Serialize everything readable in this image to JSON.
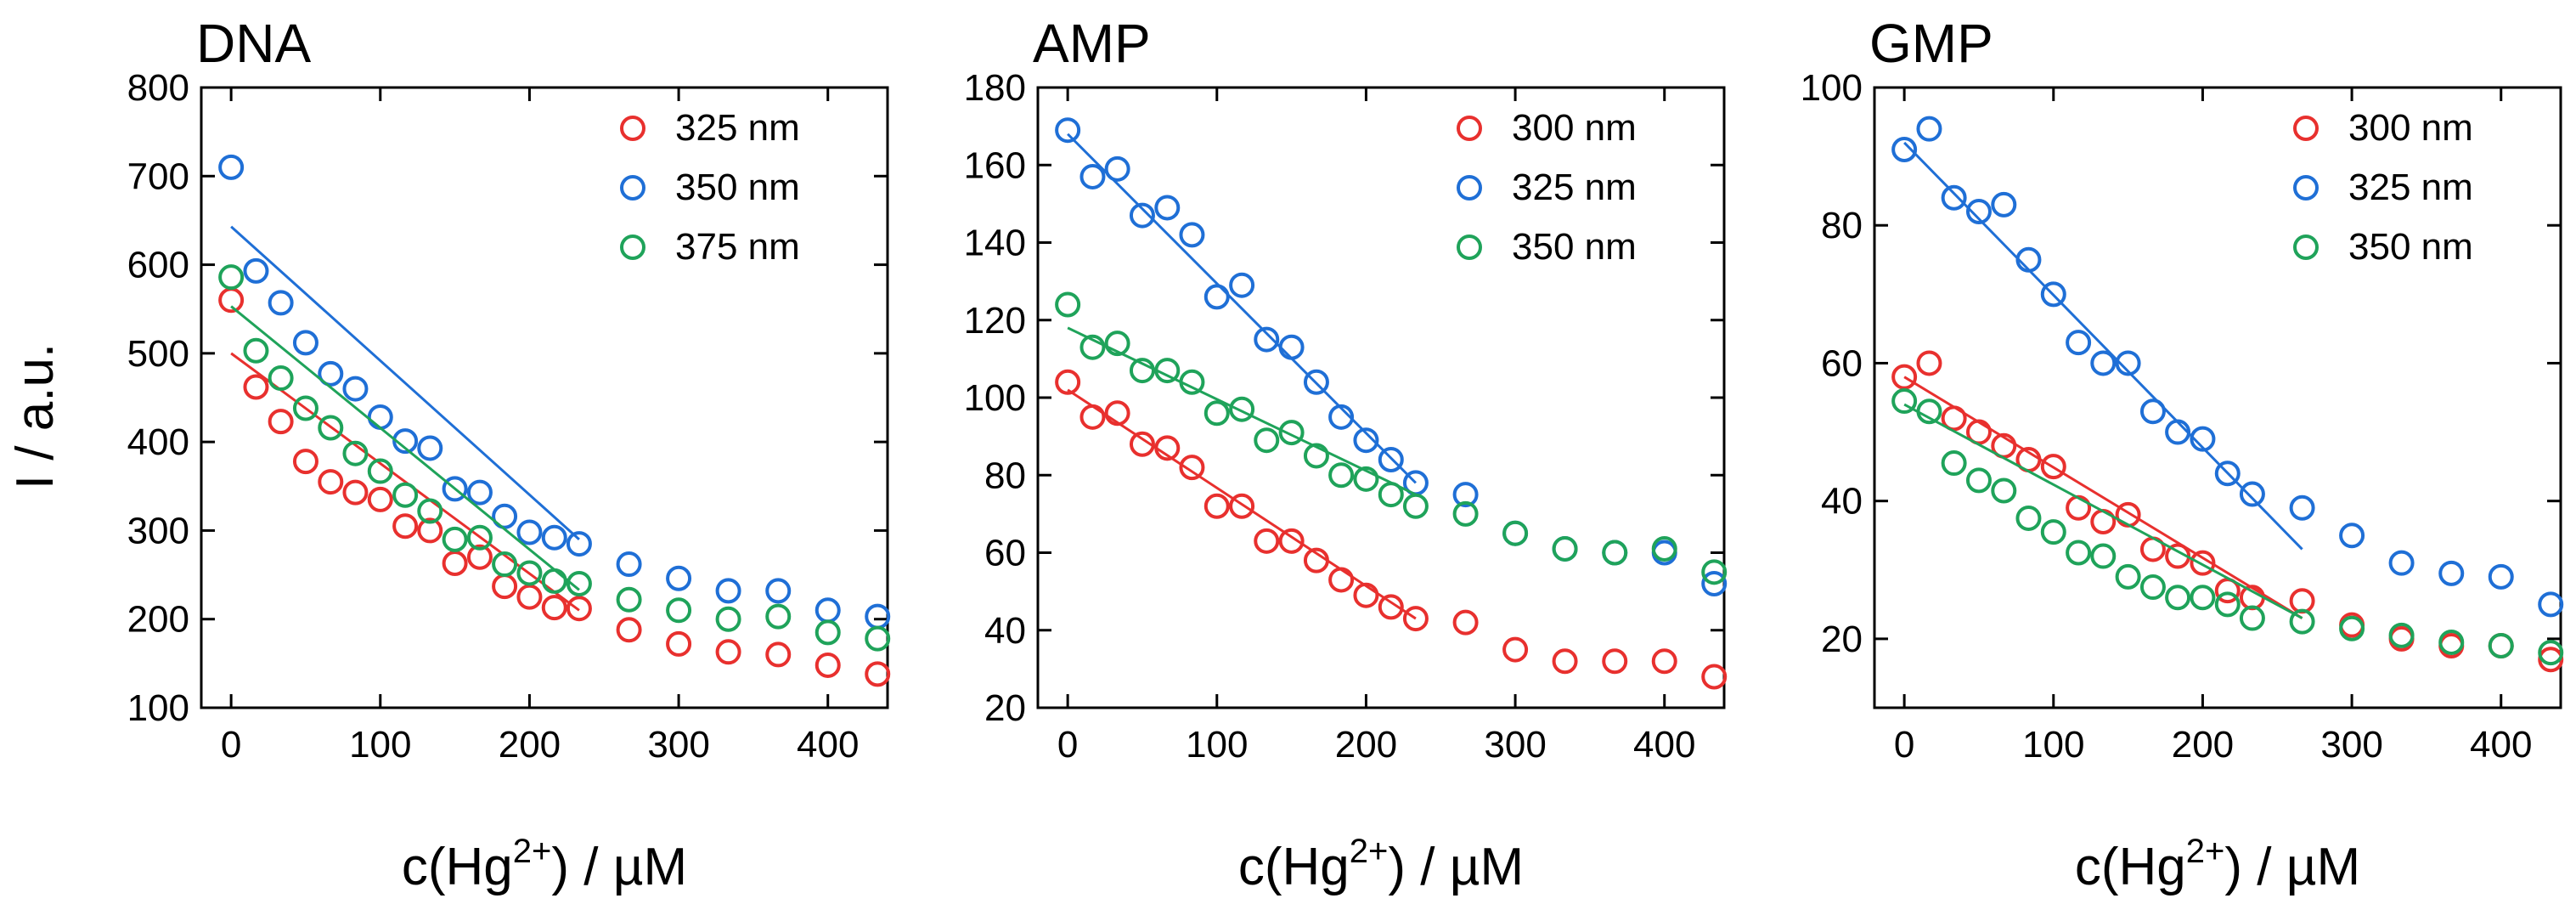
{
  "figure": {
    "ylabel": "I / a.u."
  },
  "chart_data": [
    {
      "type": "scatter",
      "title": "DNA",
      "xlabel_main": "c(Hg",
      "xlabel_sup": "2+",
      "xlabel_rest": ") / µM",
      "ylabel": "I / a.u.",
      "xlim": [
        -20,
        440
      ],
      "ylim": [
        100,
        800
      ],
      "xticks": [
        0,
        100,
        200,
        300,
        400
      ],
      "yticks": [
        100,
        200,
        300,
        400,
        500,
        600,
        700,
        800
      ],
      "legend_position": "top-right",
      "series": [
        {
          "name": "325 nm",
          "color": "#e8302e",
          "x": [
            0,
            16.7,
            33.3,
            50,
            66.7,
            83.3,
            100,
            116.7,
            133.3,
            150,
            166.7,
            183.3,
            200,
            216.7,
            233.3,
            266.7,
            300,
            333.3,
            366.7,
            400,
            433.3
          ],
          "y": [
            560,
            462,
            423,
            378,
            355,
            343,
            335,
            305,
            300,
            263,
            270,
            237,
            225,
            213,
            212,
            188,
            172,
            163,
            160,
            148,
            138
          ],
          "fit": {
            "x": [
              0,
              233.3
            ],
            "y": [
              500,
              210
            ]
          }
        },
        {
          "name": "350 nm",
          "color": "#1f6fd6",
          "x": [
            0,
            16.7,
            33.3,
            50,
            66.7,
            83.3,
            100,
            116.7,
            133.3,
            150,
            166.7,
            183.3,
            200,
            216.7,
            233.3,
            266.7,
            300,
            333.3,
            366.7,
            400,
            433.3
          ],
          "y": [
            710,
            593,
            557,
            512,
            477,
            460,
            428,
            401,
            393,
            347,
            343,
            316,
            298,
            292,
            285,
            262,
            246,
            232,
            232,
            210,
            203
          ],
          "fit": {
            "x": [
              0,
              233.3
            ],
            "y": [
              643,
              290
            ]
          }
        },
        {
          "name": "375 nm",
          "color": "#1fa35a",
          "x": [
            0,
            16.7,
            33.3,
            50,
            66.7,
            83.3,
            100,
            116.7,
            133.3,
            150,
            166.7,
            183.3,
            200,
            216.7,
            233.3,
            266.7,
            300,
            333.3,
            366.7,
            400,
            433.3
          ],
          "y": [
            586,
            503,
            472,
            438,
            416,
            387,
            367,
            340,
            322,
            290,
            292,
            262,
            252,
            243,
            240,
            222,
            210,
            200,
            203,
            185,
            178
          ],
          "fit": {
            "x": [
              0,
              233.3
            ],
            "y": [
              553,
              233
            ]
          }
        }
      ]
    },
    {
      "type": "scatter",
      "title": "AMP",
      "xlabel_main": "c(Hg",
      "xlabel_sup": "2+",
      "xlabel_rest": ") / µM",
      "xlim": [
        -20,
        440
      ],
      "ylim": [
        20,
        180
      ],
      "xticks": [
        0,
        100,
        200,
        300,
        400
      ],
      "yticks": [
        20,
        40,
        60,
        80,
        100,
        120,
        140,
        160,
        180
      ],
      "legend_position": "top-right",
      "series": [
        {
          "name": "300 nm",
          "color": "#e8302e",
          "x": [
            0,
            16.7,
            33.3,
            50,
            66.7,
            83.3,
            100,
            116.7,
            133.3,
            150,
            166.7,
            183.3,
            200,
            216.7,
            233.3,
            266.7,
            300,
            333.3,
            366.7,
            400,
            433.3
          ],
          "y": [
            104,
            95,
            96,
            88,
            87,
            82,
            72,
            72,
            63,
            63,
            58,
            53,
            49,
            46,
            43,
            42,
            35,
            32,
            32,
            32,
            28
          ],
          "fit": {
            "x": [
              0,
              233.3
            ],
            "y": [
              102,
              43
            ]
          }
        },
        {
          "name": "325 nm",
          "color": "#1f6fd6",
          "x": [
            0,
            16.7,
            33.3,
            50,
            66.7,
            83.3,
            100,
            116.7,
            133.3,
            150,
            166.7,
            183.3,
            200,
            216.7,
            233.3,
            266.7,
            300,
            333.3,
            366.7,
            400,
            433.3
          ],
          "y": [
            169,
            157,
            159,
            147,
            149,
            142,
            126,
            129,
            115,
            113,
            104,
            95,
            89,
            84,
            78,
            75,
            65,
            61,
            60,
            60,
            52
          ],
          "fit": {
            "x": [
              0,
              233.3
            ],
            "y": [
              168,
              78
            ]
          }
        },
        {
          "name": "350 nm",
          "color": "#1fa35a",
          "x": [
            0,
            16.7,
            33.3,
            50,
            66.7,
            83.3,
            100,
            116.7,
            133.3,
            150,
            166.7,
            183.3,
            200,
            216.7,
            233.3,
            266.7,
            300,
            333.3,
            366.7,
            400,
            433.3
          ],
          "y": [
            124,
            113,
            114,
            107,
            107,
            104,
            96,
            97,
            89,
            91,
            85,
            80,
            79,
            75,
            72,
            70,
            65,
            61,
            60,
            61,
            55
          ],
          "fit": {
            "x": [
              0,
              233.3
            ],
            "y": [
              118,
              75
            ]
          }
        }
      ]
    },
    {
      "type": "scatter",
      "title": "GMP",
      "xlabel_main": "c(Hg",
      "xlabel_sup": "2+",
      "xlabel_rest": ") / µM",
      "xlim": [
        -20,
        440
      ],
      "ylim": [
        10,
        100
      ],
      "xticks": [
        0,
        100,
        200,
        300,
        400
      ],
      "yticks": [
        20,
        40,
        60,
        80,
        100
      ],
      "legend_position": "top-right",
      "series": [
        {
          "name": "300 nm",
          "color": "#e8302e",
          "x": [
            0,
            16.7,
            33.3,
            50,
            66.7,
            83.3,
            100,
            116.7,
            133.3,
            150,
            166.7,
            183.3,
            200,
            216.7,
            233.3,
            266.7,
            300,
            333.3,
            366.7,
            400,
            433.3
          ],
          "y": [
            58,
            60,
            52,
            50,
            48,
            46,
            45,
            39,
            37,
            38,
            33,
            32,
            31,
            27,
            26,
            25.5,
            22,
            20,
            19,
            19,
            17
          ],
          "fit": {
            "x": [
              0,
              266.7
            ],
            "y": [
              58,
              23
            ]
          }
        },
        {
          "name": "325 nm",
          "color": "#1f6fd6",
          "x": [
            0,
            16.7,
            33.3,
            50,
            66.7,
            83.3,
            100,
            116.7,
            133.3,
            150,
            166.7,
            183.3,
            200,
            216.7,
            233.3,
            266.7,
            300,
            333.3,
            366.7,
            400,
            433.3
          ],
          "y": [
            91,
            94,
            84,
            82,
            83,
            75,
            70,
            63,
            60,
            60,
            53,
            50,
            49,
            44,
            41,
            39,
            35,
            31,
            29.5,
            29,
            25
          ],
          "fit": {
            "x": [
              0,
              266.7
            ],
            "y": [
              92,
              33
            ]
          }
        },
        {
          "name": "350 nm",
          "color": "#1fa35a",
          "x": [
            0,
            16.7,
            33.3,
            50,
            66.7,
            83.3,
            100,
            116.7,
            133.3,
            150,
            166.7,
            183.3,
            200,
            216.7,
            233.3,
            266.7,
            300,
            333.3,
            366.7,
            400,
            433.3
          ],
          "y": [
            54.5,
            53,
            45.5,
            43,
            41.5,
            37.5,
            35.5,
            32.5,
            32,
            29,
            27.5,
            26,
            26,
            25,
            23,
            22.5,
            21.5,
            20.5,
            19.5,
            19,
            18
          ],
          "fit": {
            "x": [
              0,
              266.7
            ],
            "y": [
              54,
              23
            ]
          }
        }
      ]
    }
  ]
}
